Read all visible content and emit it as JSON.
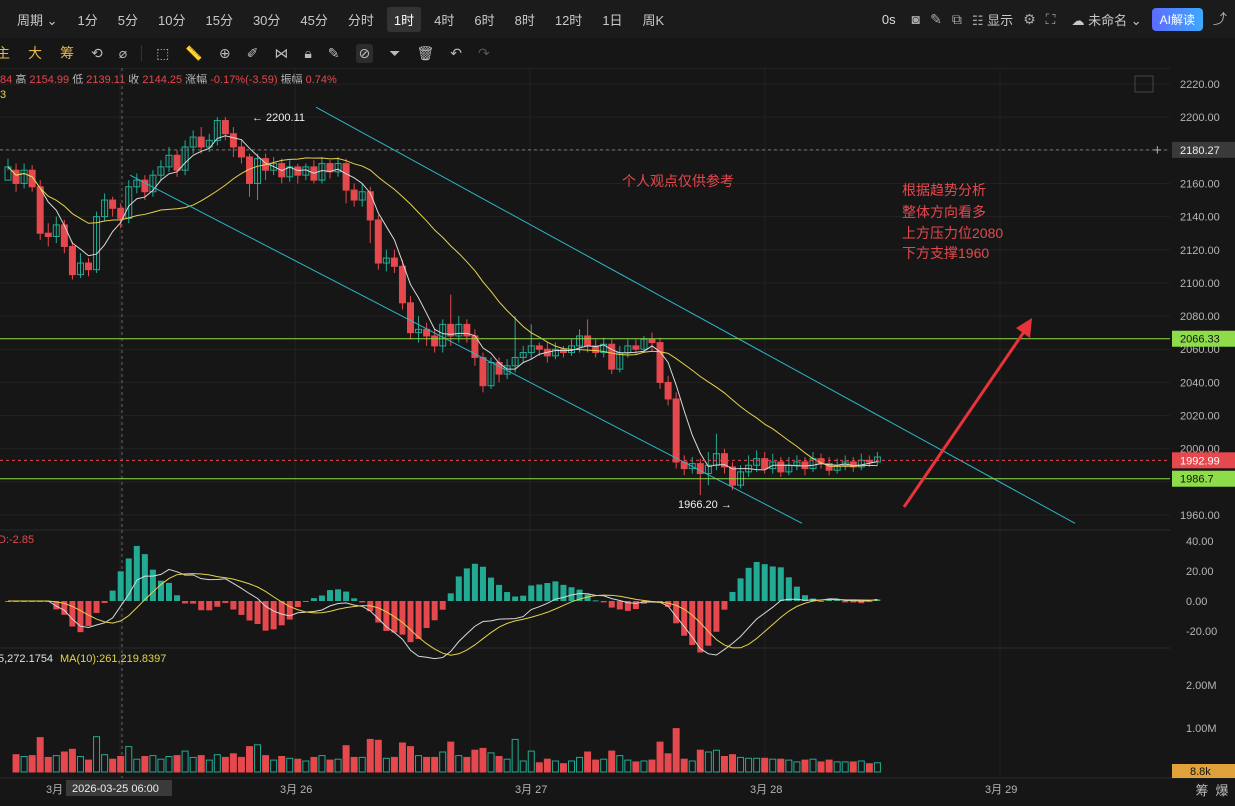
{
  "toolbar": {
    "period_label": "周期",
    "timeframes": [
      "1分",
      "5分",
      "10分",
      "15分",
      "30分",
      "45分",
      "分时",
      "1时",
      "4时",
      "6时",
      "8时",
      "12时",
      "1日",
      "周K"
    ],
    "active_timeframe": "1时",
    "countdown": "0s",
    "display_label": "显示",
    "layout_name": "未命名",
    "ai_label": "AI解读"
  },
  "toolbar2": {
    "labels": [
      "主",
      "大",
      "筹"
    ]
  },
  "ohlc": {
    "open_prefix": "84",
    "high_label": "高",
    "high": "2154.99",
    "low_label": "低",
    "low": "2139.11",
    "close_label": "收",
    "close": "2144.25",
    "change_label": "涨幅",
    "change": "-0.17%(-3.59)",
    "amp_label": "振幅",
    "amp": "0.74%",
    "line2": "3"
  },
  "indicators": {
    "macd_label": "D:-2.85",
    "vol_label": "5,272.1754",
    "vol_ma_label": "MA(10):261,219.8397"
  },
  "annotations": {
    "opinion": "个人观点仅供参考",
    "analysis": [
      "根据趋势分析",
      "整体方向看多",
      "上方压力位2080",
      "下方支撑1960"
    ],
    "high_marker": "← 2200.11",
    "low_marker": "1966.20 →"
  },
  "price_axis": {
    "ticks": [
      "2220.00",
      "2200.00",
      "2180.00",
      "2160.00",
      "2140.00",
      "2120.00",
      "2100.00",
      "2080.00",
      "2060.00",
      "2040.00",
      "2020.00",
      "2000.00",
      "1980.00",
      "1960.00"
    ],
    "crosshair_label": "2180.27",
    "resistance_label": "2066.33",
    "current_label": "1992.99",
    "support_label": "1986.7"
  },
  "macd_axis": [
    "40.00",
    "20.00",
    "0.00",
    "-20.00"
  ],
  "vol_axis": [
    "2.00M",
    "1.00M"
  ],
  "vol_current": "8.8k",
  "time_axis": {
    "labels": [
      "3月",
      "3月 26",
      "3月 27",
      "3月 28",
      "3月 29"
    ],
    "crosshair": "2026-03-25 06:00"
  },
  "bottom_right": [
    "筹",
    "爆"
  ],
  "chart_data": {
    "type": "candlestick",
    "price_range": [
      1950,
      2225
    ],
    "key_levels": {
      "resistance": 2066.33,
      "support": 1986.7,
      "current": 1992.99,
      "crosshair": 2180.27
    },
    "colors": {
      "up": "#22ab94",
      "down": "#e5484d",
      "ma5": "#d9d9d9",
      "ma10": "#e6d34a",
      "channel": "#2ab6c8",
      "level": "#8fdc4a",
      "arrow": "#e8333b"
    },
    "candles": [
      [
        2162,
        2170,
        2168,
        2175
      ],
      [
        2168,
        2160,
        2172,
        2155
      ],
      [
        2160,
        2168,
        2172,
        2157
      ],
      [
        2168,
        2158,
        2171,
        2155
      ],
      [
        2158,
        2130,
        2162,
        2126
      ],
      [
        2130,
        2128,
        2136,
        2122
      ],
      [
        2128,
        2135,
        2140,
        2124
      ],
      [
        2135,
        2122,
        2138,
        2118
      ],
      [
        2122,
        2105,
        2125,
        2102
      ],
      [
        2105,
        2112,
        2118,
        2103
      ],
      [
        2112,
        2108,
        2115,
        2104
      ],
      [
        2108,
        2140,
        2143,
        2106
      ],
      [
        2140,
        2150,
        2154,
        2137
      ],
      [
        2150,
        2145,
        2152,
        2140
      ],
      [
        2145,
        2139,
        2148,
        2133
      ],
      [
        2139,
        2158,
        2162,
        2136
      ],
      [
        2158,
        2162,
        2166,
        2154
      ],
      [
        2162,
        2155,
        2165,
        2150
      ],
      [
        2155,
        2165,
        2168,
        2152
      ],
      [
        2165,
        2170,
        2174,
        2162
      ],
      [
        2170,
        2177,
        2182,
        2167
      ],
      [
        2177,
        2168,
        2180,
        2164
      ],
      [
        2168,
        2182,
        2186,
        2165
      ],
      [
        2182,
        2188,
        2192,
        2178
      ],
      [
        2188,
        2182,
        2194,
        2178
      ],
      [
        2182,
        2186,
        2190,
        2179
      ],
      [
        2186,
        2198,
        2200,
        2183
      ],
      [
        2198,
        2190,
        2200,
        2186
      ],
      [
        2190,
        2182,
        2194,
        2176
      ],
      [
        2182,
        2176,
        2186,
        2172
      ],
      [
        2176,
        2160,
        2178,
        2152
      ],
      [
        2160,
        2175,
        2178,
        2150
      ],
      [
        2175,
        2168,
        2178,
        2162
      ],
      [
        2168,
        2172,
        2176,
        2165
      ],
      [
        2172,
        2164,
        2175,
        2160
      ],
      [
        2164,
        2170,
        2174,
        2161
      ],
      [
        2170,
        2165,
        2172,
        2160
      ],
      [
        2165,
        2170,
        2172,
        2162
      ],
      [
        2170,
        2162,
        2174,
        2160
      ],
      [
        2162,
        2172,
        2176,
        2160
      ],
      [
        2172,
        2167,
        2174,
        2163
      ],
      [
        2167,
        2172,
        2176,
        2164
      ],
      [
        2172,
        2156,
        2175,
        2148
      ],
      [
        2156,
        2150,
        2160,
        2146
      ],
      [
        2150,
        2155,
        2160,
        2146
      ],
      [
        2155,
        2138,
        2158,
        2124
      ],
      [
        2138,
        2112,
        2141,
        2108
      ],
      [
        2112,
        2115,
        2120,
        2107
      ],
      [
        2115,
        2110,
        2120,
        2106
      ],
      [
        2110,
        2088,
        2114,
        2084
      ],
      [
        2088,
        2070,
        2092,
        2066
      ],
      [
        2070,
        2072,
        2080,
        2064
      ],
      [
        2072,
        2068,
        2076,
        2062
      ],
      [
        2068,
        2062,
        2072,
        2058
      ],
      [
        2062,
        2075,
        2078,
        2058
      ],
      [
        2075,
        2068,
        2093,
        2062
      ],
      [
        2068,
        2075,
        2080,
        2064
      ],
      [
        2075,
        2068,
        2078,
        2064
      ],
      [
        2068,
        2055,
        2072,
        2050
      ],
      [
        2055,
        2038,
        2058,
        2034
      ],
      [
        2038,
        2052,
        2055,
        2036
      ],
      [
        2052,
        2045,
        2055,
        2040
      ],
      [
        2045,
        2050,
        2054,
        2042
      ],
      [
        2050,
        2055,
        2080,
        2046
      ],
      [
        2055,
        2058,
        2062,
        2052
      ],
      [
        2058,
        2062,
        2075,
        2054
      ],
      [
        2062,
        2060,
        2064,
        2056
      ],
      [
        2060,
        2056,
        2064,
        2052
      ],
      [
        2056,
        2060,
        2064,
        2054
      ],
      [
        2060,
        2058,
        2062,
        2055
      ],
      [
        2058,
        2062,
        2066,
        2056
      ],
      [
        2062,
        2068,
        2072,
        2058
      ],
      [
        2068,
        2062,
        2078,
        2058
      ],
      [
        2062,
        2058,
        2066,
        2055
      ],
      [
        2058,
        2063,
        2067,
        2055
      ],
      [
        2063,
        2048,
        2066,
        2045
      ],
      [
        2048,
        2058,
        2062,
        2046
      ],
      [
        2058,
        2062,
        2066,
        2055
      ],
      [
        2062,
        2060,
        2066,
        2057
      ],
      [
        2060,
        2066,
        2068,
        2058
      ],
      [
        2066,
        2064,
        2070,
        2059
      ],
      [
        2064,
        2040,
        2067,
        2036
      ],
      [
        2040,
        2030,
        2044,
        2026
      ],
      [
        2030,
        1992,
        2034,
        1988
      ],
      [
        1992,
        1988,
        1996,
        1984
      ],
      [
        1988,
        1991,
        1995,
        1985
      ],
      [
        1991,
        1985,
        1994,
        1972
      ],
      [
        1985,
        1990,
        1998,
        1978
      ],
      [
        1990,
        1997,
        2009,
        1987
      ],
      [
        1997,
        1989,
        2000,
        1985
      ],
      [
        1989,
        1978,
        1992,
        1975
      ],
      [
        1978,
        1986,
        1990,
        1976
      ],
      [
        1986,
        1990,
        1996,
        1983
      ],
      [
        1990,
        1994,
        1999,
        1986
      ],
      [
        1994,
        1988,
        1998,
        1985
      ],
      [
        1988,
        1992,
        1997,
        1985
      ],
      [
        1992,
        1986,
        1995,
        1983
      ],
      [
        1986,
        1990,
        1995,
        1984
      ],
      [
        1990,
        1992,
        1996,
        1987
      ],
      [
        1992,
        1988,
        1995,
        1984
      ],
      [
        1988,
        1994,
        1998,
        1986
      ],
      [
        1994,
        1991,
        1997,
        1988
      ],
      [
        1991,
        1987,
        1995,
        1984
      ],
      [
        1987,
        1990,
        1994,
        1985
      ],
      [
        1990,
        1992,
        1996,
        1987
      ],
      [
        1992,
        1989,
        1995,
        1986
      ],
      [
        1989,
        1993,
        1997,
        1987
      ],
      [
        1993,
        1992,
        1996,
        1989
      ],
      [
        1992,
        1995,
        1998,
        1990
      ]
    ]
  }
}
